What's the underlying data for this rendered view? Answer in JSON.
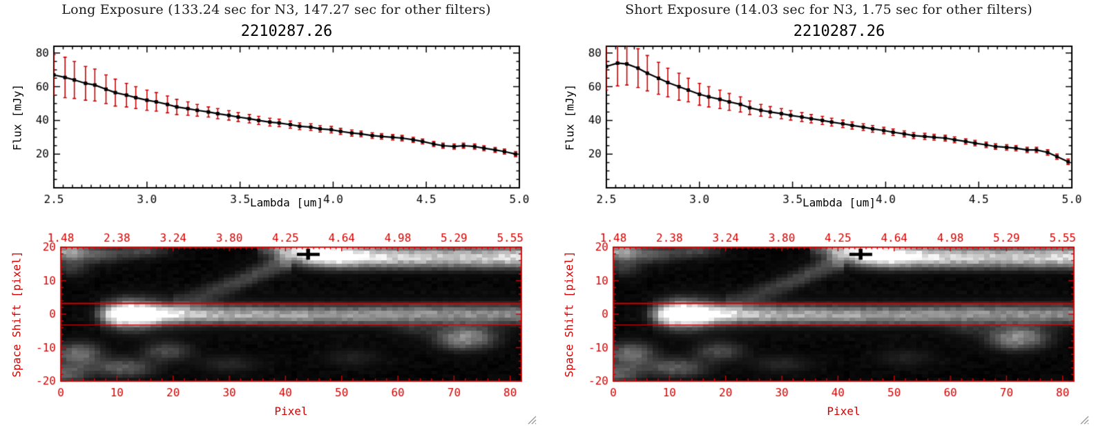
{
  "colors": {
    "axis_red": "#d40000",
    "error_red": "#cc0000",
    "line_black": "#000000",
    "background": "#ffffff"
  },
  "panels": [
    {
      "header": "Long Exposure (133.24 sec for N3, 147.27 sec for other filters)",
      "spectrum_chart": 0,
      "image_chart": 1
    },
    {
      "header": "Short Exposure (14.03 sec for N3, 1.75 sec for other filters)",
      "spectrum_chart": 2,
      "image_chart": 3
    }
  ],
  "chart_data": [
    {
      "type": "line",
      "title": "2210287.26",
      "xlabel": "Lambda [um]",
      "ylabel": "Flux [mJy]",
      "xlim": [
        2.5,
        5.0
      ],
      "ylim": [
        0,
        84
      ],
      "xticks": [
        "2.5",
        "3.0",
        "3.5",
        "4.0",
        "4.5",
        "5.0"
      ],
      "yticks": [
        "20",
        "40",
        "60",
        "80"
      ],
      "x": [
        2.5,
        2.56,
        2.61,
        2.67,
        2.72,
        2.78,
        2.83,
        2.89,
        2.94,
        3.0,
        3.05,
        3.11,
        3.16,
        3.22,
        3.27,
        3.33,
        3.38,
        3.44,
        3.49,
        3.55,
        3.6,
        3.66,
        3.71,
        3.77,
        3.82,
        3.88,
        3.93,
        3.99,
        4.04,
        4.1,
        4.15,
        4.21,
        4.26,
        4.32,
        4.37,
        4.43,
        4.48,
        4.54,
        4.59,
        4.65,
        4.7,
        4.76,
        4.81,
        4.87,
        4.92,
        4.98
      ],
      "y": [
        67,
        65.5,
        64,
        62,
        61,
        58.5,
        56.5,
        55,
        53.5,
        52,
        51,
        49.5,
        48,
        47,
        46,
        45,
        44,
        43,
        42,
        41,
        40,
        39,
        38.5,
        37.5,
        36.5,
        36,
        35,
        34.5,
        33.5,
        32.5,
        32,
        31,
        30.5,
        30,
        29.5,
        28.5,
        27.5,
        26,
        25,
        24.5,
        25,
        24.5,
        23.5,
        22.5,
        21.5,
        20
      ],
      "yerr": [
        12,
        12,
        11,
        10,
        9.5,
        8.5,
        8,
        7,
        6.5,
        6,
        5.5,
        5,
        4.5,
        4,
        3.5,
        3,
        3,
        2.8,
        2.6,
        2.5,
        2.4,
        2.3,
        2.2,
        2.1,
        2,
        2,
        1.9,
        1.9,
        1.8,
        1.8,
        1.7,
        1.7,
        1.6,
        1.6,
        1.6,
        1.5,
        1.5,
        1.5,
        1.5,
        1.5,
        1.5,
        1.5,
        1.5,
        1.5,
        1.5,
        1.5
      ]
    },
    {
      "type": "heatmap",
      "xlabel": "Pixel",
      "ylabel": "Space Shift [pixel]",
      "xlim": [
        0,
        82
      ],
      "ylim": [
        -20,
        20
      ],
      "xticks": [
        "0",
        "10",
        "20",
        "30",
        "40",
        "50",
        "60",
        "70",
        "80"
      ],
      "yticks": [
        "20",
        "10",
        "0",
        "-10",
        "-20"
      ],
      "top_ticks": [
        "1.48",
        "2.38",
        "3.24",
        "3.80",
        "4.25",
        "4.64",
        "4.98",
        "5.29",
        "5.55"
      ],
      "aperture_y": [
        3.2,
        -3.2
      ],
      "marker": {
        "x": 44,
        "y": 17.9
      },
      "features": {
        "streaks": [
          {
            "sigma": 1.7,
            "pts": [
              [
                7,
                0,
                0.12
              ],
              [
                9,
                0,
                0.5
              ],
              [
                11,
                0,
                1.0
              ],
              [
                15,
                0,
                1.0
              ],
              [
                18,
                0,
                0.75
              ],
              [
                24,
                0,
                0.6
              ],
              [
                32,
                -0.2,
                0.55
              ],
              [
                42,
                -0.3,
                0.5
              ],
              [
                52,
                -0.3,
                0.47
              ],
              [
                62,
                0,
                0.45
              ],
              [
                72,
                0,
                0.43
              ],
              [
                82,
                0,
                0.42
              ]
            ]
          },
          {
            "sigma": 3.4,
            "pts": [
              [
                8,
                0,
                0.1
              ],
              [
                12,
                0,
                0.35
              ],
              [
                16,
                0,
                0.3
              ],
              [
                22,
                0,
                0.15
              ],
              [
                30,
                0,
                0.1
              ],
              [
                82,
                0,
                0.08
              ]
            ]
          },
          {
            "sigma": 2.1,
            "pts": [
              [
                36,
                21,
                0.3
              ],
              [
                40,
                19.2,
                0.55
              ],
              [
                44,
                18.2,
                0.85
              ],
              [
                48,
                17.6,
                1.0
              ],
              [
                53,
                17.2,
                0.9
              ],
              [
                60,
                17,
                0.82
              ],
              [
                68,
                17,
                0.78
              ],
              [
                76,
                17,
                0.8
              ],
              [
                82,
                17,
                0.85
              ]
            ]
          },
          {
            "sigma": 2.0,
            "pts": [
              [
                21,
                3.5,
                0.1
              ],
              [
                27,
                7,
                0.18
              ],
              [
                32,
                10,
                0.22
              ],
              [
                37,
                13.5,
                0.26
              ],
              [
                40,
                15.5,
                0.26
              ]
            ]
          }
        ],
        "blobs": [
          [
            12,
            0,
            3.5,
            2.6,
            0.45
          ],
          [
            47,
            18,
            5,
            2.8,
            0.35
          ],
          [
            3,
            -12,
            3,
            2.5,
            0.4
          ],
          [
            11,
            -16,
            4,
            2,
            0.32
          ],
          [
            19,
            -11,
            3,
            2,
            0.26
          ],
          [
            1,
            -18,
            2.5,
            2,
            0.3
          ],
          [
            72,
            -7,
            3.5,
            2.5,
            0.5
          ],
          [
            6,
            18,
            4,
            2,
            0.3
          ],
          [
            15,
            19,
            3,
            1.5,
            0.22
          ],
          [
            1,
            19,
            2,
            1.8,
            0.5
          ],
          [
            2,
            14,
            2,
            2,
            0.18
          ],
          [
            30,
            -15,
            4,
            2,
            0.12
          ],
          [
            52,
            -13,
            4,
            2,
            0.1
          ],
          [
            63,
            -4,
            3,
            2,
            0.1
          ]
        ]
      }
    },
    {
      "type": "line",
      "title": "2210287.26",
      "xlabel": "Lambda [um]",
      "ylabel": "Flux [mJy]",
      "xlim": [
        2.5,
        5.0
      ],
      "ylim": [
        0,
        84
      ],
      "xticks": [
        "2.5",
        "3.0",
        "3.5",
        "4.0",
        "4.5",
        "5.0"
      ],
      "yticks": [
        "20",
        "40",
        "60",
        "80"
      ],
      "x": [
        2.5,
        2.56,
        2.61,
        2.67,
        2.72,
        2.78,
        2.83,
        2.89,
        2.94,
        3.0,
        3.05,
        3.11,
        3.16,
        3.22,
        3.27,
        3.33,
        3.38,
        3.44,
        3.49,
        3.55,
        3.6,
        3.66,
        3.71,
        3.77,
        3.82,
        3.88,
        3.93,
        3.99,
        4.04,
        4.1,
        4.15,
        4.21,
        4.26,
        4.32,
        4.37,
        4.43,
        4.48,
        4.54,
        4.59,
        4.65,
        4.7,
        4.76,
        4.81,
        4.87,
        4.92,
        4.98
      ],
      "y": [
        72,
        74,
        73.5,
        71,
        68,
        65,
        62.5,
        60,
        58,
        55.5,
        54,
        52.5,
        51,
        49.5,
        47.5,
        46,
        45,
        44,
        43,
        42,
        41,
        40,
        39,
        38,
        37,
        36,
        35,
        34,
        33,
        32,
        31,
        30.5,
        30,
        29.5,
        28.5,
        27.5,
        26.5,
        25.5,
        24.5,
        24,
        23.5,
        22.5,
        22.5,
        21,
        18.5,
        15.5
      ],
      "yerr": [
        14,
        13.5,
        12.5,
        11.5,
        10.5,
        9.5,
        8.5,
        8,
        7,
        6.5,
        6,
        5.5,
        5,
        4.5,
        4,
        3.5,
        3.2,
        3,
        2.8,
        2.6,
        2.5,
        2.4,
        2.3,
        2.2,
        2.1,
        2,
        2,
        1.9,
        1.9,
        1.8,
        1.8,
        1.8,
        1.7,
        1.7,
        1.7,
        1.6,
        1.6,
        1.6,
        1.6,
        1.6,
        1.6,
        1.6,
        1.6,
        1.6,
        1.6,
        1.6
      ]
    },
    {
      "type": "heatmap",
      "xlabel": "Pixel",
      "ylabel": "Space Shift [pixel]",
      "xlim": [
        0,
        82
      ],
      "ylim": [
        -20,
        20
      ],
      "xticks": [
        "0",
        "10",
        "20",
        "30",
        "40",
        "50",
        "60",
        "70",
        "80"
      ],
      "yticks": [
        "20",
        "10",
        "0",
        "-10",
        "-20"
      ],
      "top_ticks": [
        "1.48",
        "2.38",
        "3.24",
        "3.80",
        "4.25",
        "4.64",
        "4.98",
        "5.29",
        "5.55"
      ],
      "aperture_y": [
        3.2,
        -3.2
      ],
      "marker": {
        "x": 44,
        "y": 17.9
      },
      "features": {
        "streaks": [
          {
            "sigma": 1.7,
            "pts": [
              [
                7,
                0,
                0.12
              ],
              [
                9,
                0,
                0.5
              ],
              [
                11,
                0,
                1.0
              ],
              [
                15,
                0,
                1.0
              ],
              [
                18,
                0,
                0.75
              ],
              [
                24,
                0,
                0.6
              ],
              [
                32,
                -0.2,
                0.55
              ],
              [
                42,
                -0.3,
                0.5
              ],
              [
                52,
                -0.3,
                0.47
              ],
              [
                62,
                0,
                0.45
              ],
              [
                72,
                0,
                0.43
              ],
              [
                82,
                0,
                0.42
              ]
            ]
          },
          {
            "sigma": 3.4,
            "pts": [
              [
                8,
                0,
                0.1
              ],
              [
                12,
                0,
                0.35
              ],
              [
                16,
                0,
                0.3
              ],
              [
                22,
                0,
                0.15
              ],
              [
                30,
                0,
                0.1
              ],
              [
                82,
                0,
                0.08
              ]
            ]
          },
          {
            "sigma": 2.1,
            "pts": [
              [
                36,
                21,
                0.3
              ],
              [
                40,
                19.2,
                0.55
              ],
              [
                44,
                18.2,
                0.85
              ],
              [
                48,
                17.6,
                1.0
              ],
              [
                53,
                17.2,
                0.9
              ],
              [
                60,
                17,
                0.82
              ],
              [
                68,
                17,
                0.78
              ],
              [
                76,
                17,
                0.8
              ],
              [
                82,
                17,
                0.85
              ]
            ]
          },
          {
            "sigma": 2.0,
            "pts": [
              [
                21,
                3.5,
                0.1
              ],
              [
                27,
                7,
                0.18
              ],
              [
                32,
                10,
                0.22
              ],
              [
                37,
                13.5,
                0.26
              ],
              [
                40,
                15.5,
                0.26
              ]
            ]
          }
        ],
        "blobs": [
          [
            12,
            0,
            3.5,
            2.6,
            0.45
          ],
          [
            47,
            18,
            5,
            2.8,
            0.35
          ],
          [
            3,
            -12,
            3,
            2.5,
            0.4
          ],
          [
            11,
            -16,
            4,
            2,
            0.32
          ],
          [
            19,
            -11,
            3,
            2,
            0.26
          ],
          [
            1,
            -18,
            2.5,
            2,
            0.3
          ],
          [
            72,
            -7,
            3.5,
            2.5,
            0.5
          ],
          [
            6,
            18,
            4,
            2,
            0.3
          ],
          [
            15,
            19,
            3,
            1.5,
            0.22
          ],
          [
            1,
            19,
            2,
            1.8,
            0.5
          ],
          [
            2,
            14,
            2,
            2,
            0.18
          ],
          [
            30,
            -15,
            4,
            2,
            0.12
          ],
          [
            52,
            -13,
            4,
            2,
            0.1
          ],
          [
            63,
            -4,
            3,
            2,
            0.1
          ]
        ]
      }
    }
  ]
}
